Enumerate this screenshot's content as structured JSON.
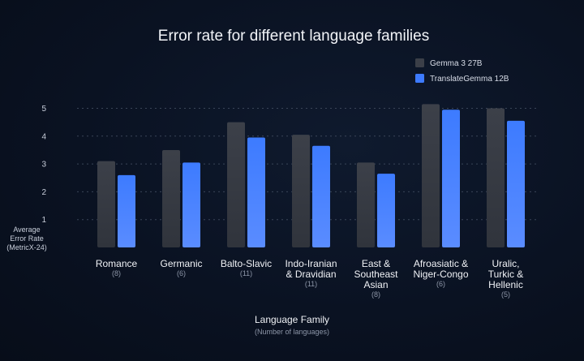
{
  "chart_data": {
    "type": "bar",
    "title": "Error rate for different language families",
    "ylabel": [
      "Average",
      "Error Rate",
      "(MetricX-24)"
    ],
    "xlabel": "Language Family",
    "xlabel_sub": "(Number of languages)",
    "ylim": [
      0,
      5
    ],
    "yticks": [
      1,
      2,
      3,
      4,
      5
    ],
    "grid": true,
    "legend_position": "top-right",
    "categories": [
      {
        "label": [
          "Romance"
        ],
        "count": "(8)"
      },
      {
        "label": [
          "Germanic"
        ],
        "count": "(6)"
      },
      {
        "label": [
          "Balto-Slavic"
        ],
        "count": "(11)"
      },
      {
        "label": [
          "Indo-Iranian",
          "& Dravidian"
        ],
        "count": "(11)"
      },
      {
        "label": [
          "East &",
          "Southeast",
          "Asian"
        ],
        "count": "(8)"
      },
      {
        "label": [
          "Afroasiatic &",
          "Niger-Congo"
        ],
        "count": "(6)"
      },
      {
        "label": [
          "Uralic,",
          "Turkic &",
          "Hellenic"
        ],
        "count": "(5)"
      }
    ],
    "series": [
      {
        "name": "Gemma 3 27B",
        "color": "#3b3f48",
        "values": [
          3.1,
          3.5,
          4.5,
          4.05,
          3.05,
          5.15,
          5.0
        ]
      },
      {
        "name": "TranslateGemma 12B",
        "color": "#3d7bff",
        "values": [
          2.6,
          3.05,
          3.95,
          3.65,
          2.65,
          4.95,
          4.55
        ]
      }
    ]
  }
}
